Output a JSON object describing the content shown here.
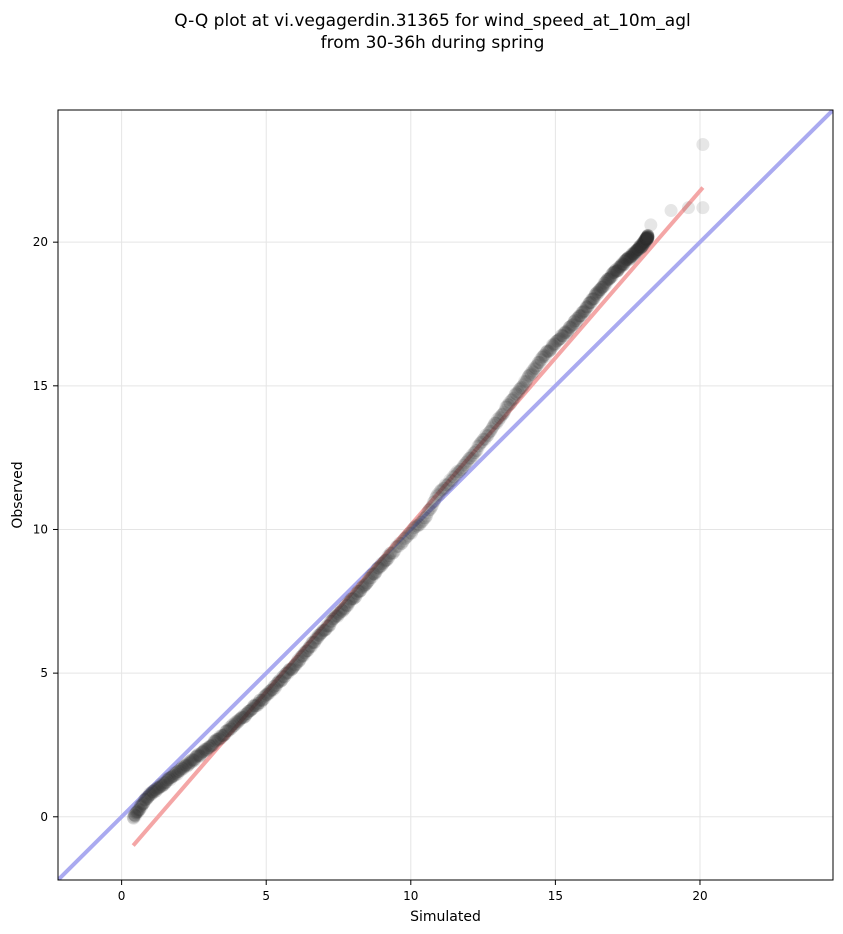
{
  "title": {
    "line1": "Q-Q plot at vi.vegagerdin.31365 for wind_speed_at_10m_agl",
    "line2": "from 30-36h during spring"
  },
  "chart_data": {
    "type": "scatter",
    "title": "Q-Q plot at vi.vegagerdin.31365 for wind_speed_at_10m_agl from 30-36h during spring",
    "xlabel": "Simulated",
    "ylabel": "Observed",
    "xlim": [
      -2.2,
      24.6
    ],
    "ylim": [
      -2.2,
      24.6
    ],
    "xticks": [
      0,
      5,
      10,
      15,
      20
    ],
    "yticks": [
      0,
      5,
      10,
      15,
      20
    ],
    "grid": true,
    "colors": {
      "points": "#333333",
      "identity_line": "#aaaaf0",
      "fit_line": "#f4a6a6",
      "grid": "#e5e5e5"
    },
    "identity_line": {
      "x": [
        -2.2,
        24.6
      ],
      "y": [
        -2.2,
        24.6
      ]
    },
    "fit_line": {
      "x": [
        0.4,
        20.1
      ],
      "y": [
        -1.0,
        21.9
      ]
    },
    "quantile_curve": {
      "x": [
        0.4,
        0.9,
        1.5,
        2.5,
        3.0,
        4.0,
        5.0,
        6.0,
        7.0,
        8.0,
        9.0,
        10.0,
        10.5,
        11.0,
        12.0,
        12.5,
        13.0,
        13.5,
        14.0,
        14.5,
        15.0,
        15.5,
        16.0,
        16.5,
        17.0,
        17.5,
        18.0,
        18.2
      ],
      "y": [
        -0.05,
        0.7,
        1.2,
        2.0,
        2.4,
        3.3,
        4.2,
        5.3,
        6.5,
        7.6,
        8.8,
        9.9,
        10.4,
        11.3,
        12.4,
        13.1,
        13.8,
        14.5,
        15.2,
        15.9,
        16.5,
        17.0,
        17.6,
        18.3,
        18.9,
        19.4,
        19.9,
        20.2
      ]
    },
    "points": {
      "count": 800,
      "outliers": [
        {
          "x": 20.1,
          "y": 23.4
        },
        {
          "x": 20.1,
          "y": 21.2
        },
        {
          "x": 19.6,
          "y": 21.2
        },
        {
          "x": 19.0,
          "y": 21.1
        },
        {
          "x": 18.3,
          "y": 20.6
        },
        {
          "x": 18.1,
          "y": 20.0
        }
      ]
    }
  }
}
